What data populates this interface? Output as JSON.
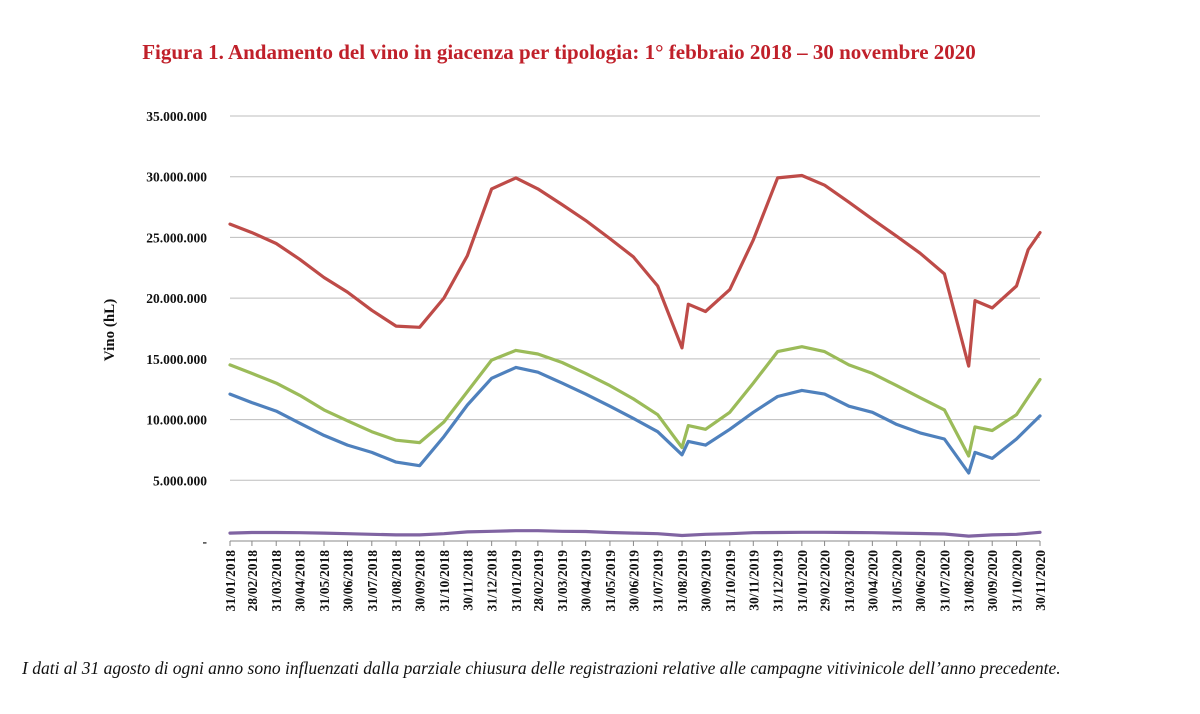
{
  "figure": {
    "title": "Figura 1. Andamento del vino in giacenza per tipologia: 1° febbraio 2018 – 30 novembre 2020",
    "note": "I dati al 31 agosto di ogni anno sono influenzati dalla parziale chiusura delle registrazioni relative alle campagne vitivinicole dell’anno precedente."
  },
  "chart_data": {
    "type": "line",
    "title": "Figura 1. Andamento del vino in giacenza per tipologia: 1° febbraio 2018 – 30 novembre 2020",
    "ylabel": "Vino (hL)",
    "xlabel": "",
    "ylim": [
      0,
      35000000
    ],
    "yticks": [
      0,
      5000000,
      10000000,
      15000000,
      20000000,
      25000000,
      30000000,
      35000000
    ],
    "ytick_labels": [
      "-",
      "5.000.000",
      "10.000.000",
      "15.000.000",
      "20.000.000",
      "25.000.000",
      "30.000.000",
      "35.000.000"
    ],
    "grid": "horizontal",
    "legend": "none",
    "x_tick_labels": [
      "31/01/2018",
      "28/02/2018",
      "31/03/2018",
      "30/04/2018",
      "31/05/2018",
      "30/06/2018",
      "31/07/2018",
      "31/08/2018",
      "30/09/2018",
      "31/10/2018",
      "30/11/2018",
      "31/12/2018",
      "31/01/2019",
      "28/02/2019",
      "31/03/2019",
      "30/04/2019",
      "31/05/2019",
      "30/06/2019",
      "31/07/2019",
      "31/08/2019",
      "30/09/2019",
      "31/10/2019",
      "30/11/2019",
      "31/12/2019",
      "31/01/2020",
      "29/02/2020",
      "31/03/2020",
      "30/04/2020",
      "31/05/2020",
      "30/06/2020",
      "31/07/2020",
      "31/08/2020",
      "30/09/2020",
      "31/10/2020",
      "30/11/2020"
    ],
    "series": [
      {
        "color": "#be4b48",
        "points": [
          [
            "31/01/2018",
            26100000
          ],
          [
            "28/02/2018",
            25400000
          ],
          [
            "31/03/2018",
            24500000
          ],
          [
            "30/04/2018",
            23200000
          ],
          [
            "31/05/2018",
            21700000
          ],
          [
            "30/06/2018",
            20500000
          ],
          [
            "31/07/2018",
            19000000
          ],
          [
            "31/08/2018",
            17700000
          ],
          [
            "30/09/2018",
            17600000
          ],
          [
            "31/10/2018",
            20000000
          ],
          [
            "30/11/2018",
            23500000
          ],
          [
            "31/12/2018",
            29000000
          ],
          [
            "31/01/2019",
            29900000
          ],
          [
            "28/02/2019",
            29000000
          ],
          [
            "31/03/2019",
            27700000
          ],
          [
            "30/04/2019",
            26400000
          ],
          [
            "31/05/2019",
            24900000
          ],
          [
            "30/06/2019",
            23400000
          ],
          [
            "31/07/2019",
            21000000
          ],
          [
            "31/08/2019",
            15900000
          ],
          [
            "08/09/2019",
            19500000
          ],
          [
            "30/09/2019",
            18900000
          ],
          [
            "31/10/2019",
            20700000
          ],
          [
            "30/11/2019",
            24800000
          ],
          [
            "31/12/2019",
            29900000
          ],
          [
            "31/01/2020",
            30100000
          ],
          [
            "29/02/2020",
            29300000
          ],
          [
            "31/03/2020",
            27900000
          ],
          [
            "30/04/2020",
            26500000
          ],
          [
            "31/05/2020",
            25100000
          ],
          [
            "30/06/2020",
            23700000
          ],
          [
            "31/07/2020",
            22000000
          ],
          [
            "31/08/2020",
            14400000
          ],
          [
            "08/09/2020",
            19800000
          ],
          [
            "30/09/2020",
            19200000
          ],
          [
            "31/10/2020",
            21000000
          ],
          [
            "15/11/2020",
            24000000
          ],
          [
            "30/11/2020",
            25400000
          ]
        ]
      },
      {
        "color": "#9bbb59",
        "points": [
          [
            "31/01/2018",
            14500000
          ],
          [
            "28/02/2018",
            13800000
          ],
          [
            "31/03/2018",
            13000000
          ],
          [
            "30/04/2018",
            12000000
          ],
          [
            "31/05/2018",
            10800000
          ],
          [
            "30/06/2018",
            9900000
          ],
          [
            "31/07/2018",
            9000000
          ],
          [
            "31/08/2018",
            8300000
          ],
          [
            "30/09/2018",
            8100000
          ],
          [
            "31/10/2018",
            9800000
          ],
          [
            "30/11/2018",
            12300000
          ],
          [
            "31/12/2018",
            14900000
          ],
          [
            "31/01/2019",
            15700000
          ],
          [
            "28/02/2019",
            15400000
          ],
          [
            "31/03/2019",
            14700000
          ],
          [
            "30/04/2019",
            13800000
          ],
          [
            "31/05/2019",
            12800000
          ],
          [
            "30/06/2019",
            11700000
          ],
          [
            "31/07/2019",
            10400000
          ],
          [
            "31/08/2019",
            7700000
          ],
          [
            "08/09/2019",
            9500000
          ],
          [
            "30/09/2019",
            9200000
          ],
          [
            "31/10/2019",
            10600000
          ],
          [
            "30/11/2019",
            13000000
          ],
          [
            "31/12/2019",
            15600000
          ],
          [
            "31/01/2020",
            16000000
          ],
          [
            "29/02/2020",
            15600000
          ],
          [
            "31/03/2020",
            14500000
          ],
          [
            "30/04/2020",
            13800000
          ],
          [
            "31/05/2020",
            12800000
          ],
          [
            "30/06/2020",
            11800000
          ],
          [
            "31/07/2020",
            10800000
          ],
          [
            "31/08/2020",
            7000000
          ],
          [
            "08/09/2020",
            9400000
          ],
          [
            "30/09/2020",
            9100000
          ],
          [
            "31/10/2020",
            10400000
          ],
          [
            "30/11/2020",
            13300000
          ]
        ]
      },
      {
        "color": "#4f81bd",
        "points": [
          [
            "31/01/2018",
            12100000
          ],
          [
            "28/02/2018",
            11400000
          ],
          [
            "31/03/2018",
            10700000
          ],
          [
            "30/04/2018",
            9700000
          ],
          [
            "31/05/2018",
            8700000
          ],
          [
            "30/06/2018",
            7900000
          ],
          [
            "31/07/2018",
            7300000
          ],
          [
            "31/08/2018",
            6500000
          ],
          [
            "30/09/2018",
            6200000
          ],
          [
            "31/10/2018",
            8600000
          ],
          [
            "30/11/2018",
            11200000
          ],
          [
            "31/12/2018",
            13400000
          ],
          [
            "31/01/2019",
            14300000
          ],
          [
            "28/02/2019",
            13900000
          ],
          [
            "31/03/2019",
            13000000
          ],
          [
            "30/04/2019",
            12100000
          ],
          [
            "31/05/2019",
            11100000
          ],
          [
            "30/06/2019",
            10100000
          ],
          [
            "31/07/2019",
            9000000
          ],
          [
            "31/08/2019",
            7100000
          ],
          [
            "08/09/2019",
            8200000
          ],
          [
            "30/09/2019",
            7900000
          ],
          [
            "31/10/2019",
            9200000
          ],
          [
            "30/11/2019",
            10600000
          ],
          [
            "31/12/2019",
            11900000
          ],
          [
            "31/01/2020",
            12400000
          ],
          [
            "29/02/2020",
            12100000
          ],
          [
            "31/03/2020",
            11100000
          ],
          [
            "30/04/2020",
            10600000
          ],
          [
            "31/05/2020",
            9600000
          ],
          [
            "30/06/2020",
            8900000
          ],
          [
            "31/07/2020",
            8400000
          ],
          [
            "31/08/2020",
            5600000
          ],
          [
            "08/09/2020",
            7300000
          ],
          [
            "30/09/2020",
            6800000
          ],
          [
            "31/10/2020",
            8400000
          ],
          [
            "30/11/2020",
            10300000
          ]
        ]
      },
      {
        "color": "#8064a2",
        "points": [
          [
            "31/01/2018",
            650000
          ],
          [
            "28/02/2018",
            700000
          ],
          [
            "31/03/2018",
            700000
          ],
          [
            "30/04/2018",
            680000
          ],
          [
            "31/05/2018",
            650000
          ],
          [
            "30/06/2018",
            600000
          ],
          [
            "31/07/2018",
            550000
          ],
          [
            "31/08/2018",
            500000
          ],
          [
            "30/09/2018",
            500000
          ],
          [
            "31/10/2018",
            600000
          ],
          [
            "30/11/2018",
            750000
          ],
          [
            "31/12/2018",
            800000
          ],
          [
            "31/01/2019",
            850000
          ],
          [
            "28/02/2019",
            850000
          ],
          [
            "31/03/2019",
            800000
          ],
          [
            "30/04/2019",
            780000
          ],
          [
            "31/05/2019",
            700000
          ],
          [
            "30/06/2019",
            650000
          ],
          [
            "31/07/2019",
            600000
          ],
          [
            "31/08/2019",
            450000
          ],
          [
            "30/09/2019",
            550000
          ],
          [
            "31/10/2019",
            600000
          ],
          [
            "30/11/2019",
            680000
          ],
          [
            "31/12/2019",
            700000
          ],
          [
            "31/01/2020",
            720000
          ],
          [
            "29/02/2020",
            720000
          ],
          [
            "31/03/2020",
            700000
          ],
          [
            "30/04/2020",
            680000
          ],
          [
            "31/05/2020",
            650000
          ],
          [
            "30/06/2020",
            620000
          ],
          [
            "31/07/2020",
            580000
          ],
          [
            "31/08/2020",
            400000
          ],
          [
            "30/09/2020",
            500000
          ],
          [
            "31/10/2020",
            550000
          ],
          [
            "30/11/2020",
            720000
          ]
        ]
      }
    ]
  }
}
